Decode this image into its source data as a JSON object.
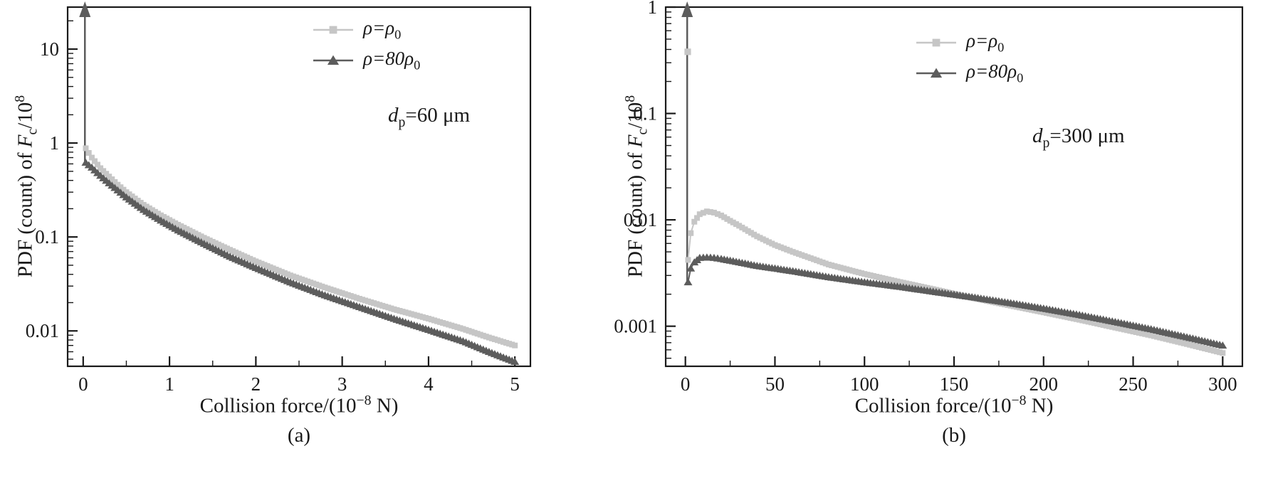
{
  "figure": {
    "background": "#ffffff",
    "axis_color": "#1a1a1a"
  },
  "labels": {
    "ylabel": {
      "pre": "PDF (count) of ",
      "var": "F",
      "sub": "c",
      "mid": "/10",
      "sup": "8"
    },
    "xlabel": {
      "pre": "Collision force/(10",
      "sup": "−8",
      "post": " N)"
    }
  },
  "chart_data": [
    {
      "type": "line",
      "panel_label": "(a)",
      "annotation": {
        "var": "d",
        "sub": "p",
        "rest": "=60 μm"
      },
      "xlabel": "Collision force/(10^−8 N)",
      "ylabel": "PDF (count) of F_c/10^8",
      "x_ticks": [
        0,
        1,
        2,
        3,
        4,
        5
      ],
      "x_minor_step": 0.5,
      "xlim": [
        -0.18,
        5.18
      ],
      "y_scale": "log",
      "ylim": [
        0.0042,
        28
      ],
      "y_ticks": [
        {
          "v": 10,
          "label": "10"
        },
        {
          "v": 1,
          "label": "1"
        },
        {
          "v": 0.1,
          "label": "0.1"
        },
        {
          "v": 0.01,
          "label": "0.01"
        }
      ],
      "legend_position": "top-right-inside",
      "series": [
        {
          "name": "rho = rho0",
          "label": {
            "pre": "ρ=ρ",
            "sub": "0"
          },
          "marker": "square",
          "color": "#c6c6c6",
          "x": [
            0.03,
            0.1,
            0.2,
            0.3,
            0.4,
            0.5,
            0.7,
            0.9,
            1.1,
            1.4,
            1.7,
            2.0,
            2.4,
            2.8,
            3.2,
            3.6,
            4.0,
            4.4,
            4.7,
            5.0
          ],
          "y": [
            0.88,
            0.7,
            0.54,
            0.44,
            0.36,
            0.3,
            0.22,
            0.17,
            0.135,
            0.098,
            0.073,
            0.055,
            0.039,
            0.029,
            0.022,
            0.017,
            0.0135,
            0.0105,
            0.0085,
            0.007
          ]
        },
        {
          "name": "rho = 80 rho0",
          "label": {
            "pre": "ρ=80ρ",
            "sub": "0"
          },
          "marker": "triangle-up",
          "color": "#5c5c5c",
          "spike": {
            "x": 0.02,
            "to": "top"
          },
          "x": [
            0.03,
            0.1,
            0.2,
            0.3,
            0.4,
            0.5,
            0.7,
            0.9,
            1.1,
            1.4,
            1.7,
            2.0,
            2.4,
            2.8,
            3.2,
            3.6,
            4.0,
            4.4,
            4.7,
            5.0
          ],
          "y": [
            0.62,
            0.55,
            0.45,
            0.375,
            0.315,
            0.265,
            0.195,
            0.15,
            0.118,
            0.085,
            0.062,
            0.047,
            0.033,
            0.024,
            0.018,
            0.0135,
            0.0103,
            0.0078,
            0.006,
            0.0047
          ]
        }
      ]
    },
    {
      "type": "line",
      "panel_label": "(b)",
      "annotation": {
        "var": "d",
        "sub": "p",
        "rest": "=300 μm"
      },
      "xlabel": "Collision force/(10^−8 N)",
      "ylabel": "PDF (count) of F_c/10^8",
      "x_ticks": [
        0,
        50,
        100,
        150,
        200,
        250,
        300
      ],
      "x_minor_step": 25,
      "xlim": [
        -11,
        311
      ],
      "y_scale": "log",
      "ylim": [
        0.00042,
        1.0
      ],
      "y_ticks": [
        {
          "v": 1,
          "label": "1"
        },
        {
          "v": 0.1,
          "label": "0.1"
        },
        {
          "v": 0.01,
          "label": "0.01"
        },
        {
          "v": 0.001,
          "label": "0.001"
        }
      ],
      "legend_position": "top-right-inside",
      "series": [
        {
          "name": "rho = rho0",
          "label": {
            "pre": "ρ=ρ",
            "sub": "0"
          },
          "marker": "square",
          "color": "#c6c6c6",
          "extra_points": [
            [
              1.3,
              0.38
            ]
          ],
          "x": [
            1.5,
            3,
            5,
            8,
            12,
            16,
            20,
            25,
            30,
            40,
            50,
            60,
            80,
            100,
            120,
            140,
            160,
            180,
            200,
            220,
            240,
            260,
            280,
            300
          ],
          "y": [
            0.0042,
            0.0075,
            0.0096,
            0.0113,
            0.012,
            0.0117,
            0.011,
            0.0098,
            0.0088,
            0.007,
            0.0058,
            0.005,
            0.0038,
            0.0031,
            0.0026,
            0.0022,
            0.00185,
            0.00158,
            0.00135,
            0.00115,
            0.00097,
            0.00082,
            0.00068,
            0.00056
          ]
        },
        {
          "name": "rho = 80 rho0",
          "label": {
            "pre": "ρ=80ρ",
            "sub": "0"
          },
          "marker": "triangle-up",
          "color": "#5c5c5c",
          "spike": {
            "x": 1.0,
            "to": "top"
          },
          "x": [
            1.5,
            3,
            5,
            8,
            12,
            16,
            20,
            25,
            30,
            40,
            50,
            60,
            80,
            100,
            120,
            140,
            160,
            180,
            200,
            220,
            240,
            260,
            280,
            300
          ],
          "y": [
            0.0026,
            0.0035,
            0.004,
            0.0044,
            0.00445,
            0.0044,
            0.0043,
            0.00415,
            0.004,
            0.0037,
            0.0035,
            0.0033,
            0.0029,
            0.0026,
            0.00235,
            0.0021,
            0.00188,
            0.00167,
            0.00147,
            0.00128,
            0.0011,
            0.00094,
            0.00079,
            0.00066
          ]
        }
      ]
    }
  ]
}
